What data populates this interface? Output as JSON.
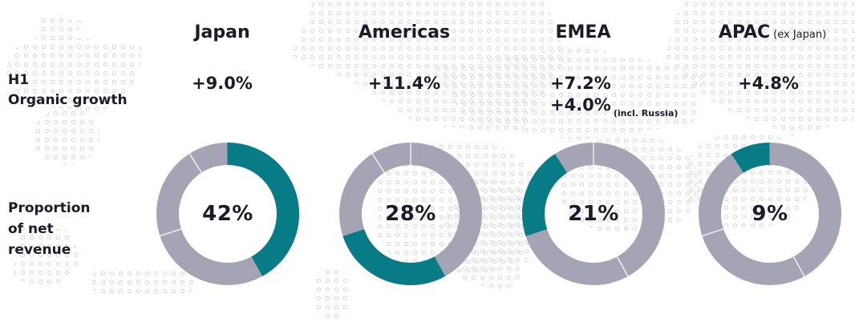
{
  "row_labels": {
    "growth_line1": "H1",
    "growth_line2": "Organic growth",
    "proportion_lines": [
      "Proportion",
      "of net",
      "revenue"
    ]
  },
  "columns": [
    {
      "region": "Japan",
      "region_suffix": "",
      "growth_lines": [
        "+9.0%"
      ],
      "growth_note": "",
      "proportion_label": "42%",
      "proportion_value": 42
    },
    {
      "region": "Americas",
      "region_suffix": "",
      "growth_lines": [
        "+11.4%"
      ],
      "growth_note": "",
      "proportion_label": "28%",
      "proportion_value": 28
    },
    {
      "region": "EMEA",
      "region_suffix": "",
      "growth_lines": [
        "+7.2%",
        "+4.0%"
      ],
      "growth_note": "(incl. Russia)",
      "proportion_label": "21%",
      "proportion_value": 21
    },
    {
      "region": "APAC",
      "region_suffix": "(ex Japan)",
      "growth_lines": [
        "+4.8%"
      ],
      "growth_note": "",
      "proportion_label": "9%",
      "proportion_value": 9
    }
  ],
  "colors": {
    "highlight": "#087C86",
    "ring": "#A5A4B4",
    "text": "#1B1B2A",
    "map_dots": "#D8D8DD",
    "separator": "#FFFFFF"
  },
  "chart_data": {
    "type": "pie",
    "variant": "donut, one per region, region share highlighted",
    "categories": [
      "Japan",
      "Americas",
      "EMEA",
      "APAC (ex Japan)"
    ],
    "series": [
      {
        "name": "H1 Organic growth",
        "values": [
          "+9.0%",
          "+11.4%",
          "+7.2% / +4.0% (incl. Russia)",
          "+4.8%"
        ]
      },
      {
        "name": "Proportion of net revenue",
        "unit": "%",
        "values": [
          42,
          28,
          21,
          9
        ]
      }
    ],
    "title": "",
    "legend_position": "none",
    "highlight_color": "#087C86",
    "ring_color": "#A5A4B4",
    "notes": "All four donuts depict the same 42/28/21/9 split of net revenue; each donut highlights its own region's slice in teal starting sequentially from 12 o'clock clockwise."
  }
}
